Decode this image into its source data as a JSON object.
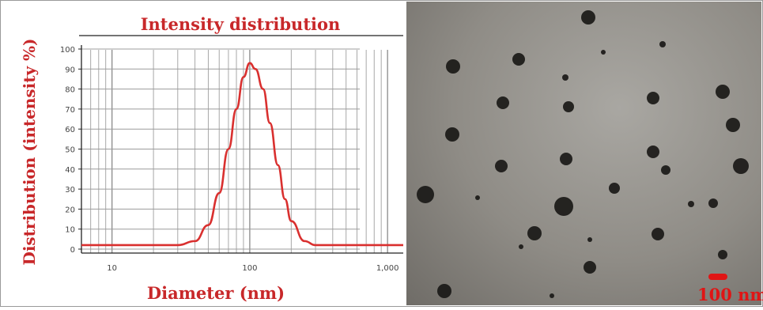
{
  "chart_data": {
    "type": "line",
    "title": "Intensity distribution",
    "xlabel": "Diameter (nm)",
    "ylabel": "Distribution (intensity %)",
    "x_scale": "log",
    "xlim": [
      6,
      1300
    ],
    "ylim": [
      0,
      100
    ],
    "x_ticks": [
      "10",
      "100",
      "1,000"
    ],
    "y_ticks": [
      "0",
      "10",
      "20",
      "30",
      "40",
      "50",
      "60",
      "70",
      "80",
      "90",
      "100"
    ],
    "grid": true,
    "series": [
      {
        "color": "#d9302f",
        "points": [
          [
            6,
            2
          ],
          [
            30,
            2
          ],
          [
            40,
            4
          ],
          [
            50,
            12
          ],
          [
            60,
            28
          ],
          [
            70,
            50
          ],
          [
            80,
            70
          ],
          [
            90,
            86
          ],
          [
            100,
            93
          ],
          [
            110,
            90
          ],
          [
            125,
            80
          ],
          [
            140,
            63
          ],
          [
            160,
            42
          ],
          [
            180,
            25
          ],
          [
            200,
            14
          ],
          [
            250,
            4
          ],
          [
            300,
            2
          ],
          [
            1300,
            2
          ]
        ]
      }
    ]
  },
  "micrograph": {
    "scale_bar_label": "100 nm",
    "accent_color": "#e01515"
  }
}
